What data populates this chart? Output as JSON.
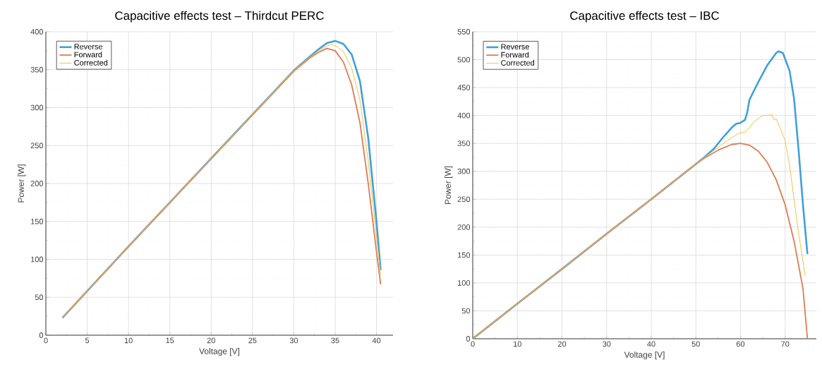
{
  "chart_data": [
    {
      "type": "line",
      "title": "Capacitive effects test – Thirdcut PERC",
      "xlabel": "Voltage [V]",
      "ylabel": "Power [W]",
      "xlim": [
        0,
        42
      ],
      "ylim": [
        0,
        400
      ],
      "xticks": [
        0,
        5,
        10,
        15,
        20,
        25,
        30,
        35,
        40
      ],
      "yticks": [
        0,
        50,
        100,
        150,
        200,
        250,
        300,
        350,
        400
      ],
      "grid": true,
      "legend": "top left",
      "marker": "none",
      "line_style": "solid",
      "series": [
        {
          "name": "Reverse",
          "color": "#3fa0dc",
          "x": [
            2,
            10,
            20,
            30,
            32,
            33,
            34,
            35,
            36,
            37,
            38,
            39,
            40,
            40.5
          ],
          "values": [
            23,
            117,
            233,
            349,
            368,
            377,
            385,
            388,
            384,
            370,
            335,
            260,
            150,
            86
          ]
        },
        {
          "name": "Forward",
          "color": "#e07b54",
          "x": [
            2,
            10,
            20,
            30,
            32,
            33,
            34,
            35,
            36,
            37,
            38,
            39,
            40,
            40.5
          ],
          "values": [
            23,
            117,
            233,
            348,
            366,
            373,
            378,
            375,
            360,
            330,
            280,
            200,
            110,
            67
          ]
        },
        {
          "name": "Corrected",
          "color": "#f4c245",
          "x": [
            2,
            10,
            20,
            30,
            32,
            33,
            34,
            34.5,
            35,
            36,
            37,
            38,
            39,
            40,
            40.5
          ],
          "values": [
            23,
            117,
            233,
            349,
            367,
            375,
            381,
            383,
            382,
            374,
            352,
            310,
            230,
            130,
            80
          ]
        }
      ]
    },
    {
      "type": "line",
      "title": "Capacitive effects test – IBC",
      "xlabel": "Voltage [V]",
      "ylabel": "Power [W]",
      "xlim": [
        0,
        77
      ],
      "ylim": [
        0,
        550
      ],
      "xticks": [
        0,
        10,
        20,
        30,
        40,
        50,
        60,
        70
      ],
      "yticks": [
        0,
        50,
        100,
        150,
        200,
        250,
        300,
        350,
        400,
        450,
        500,
        550
      ],
      "grid": true,
      "legend": "top left",
      "marker": "none",
      "line_style": "solid",
      "series": [
        {
          "name": "Reverse",
          "color": "#3fa0dc",
          "x": [
            0,
            10,
            20,
            30,
            40,
            50,
            52,
            54,
            56,
            58,
            59,
            60,
            61,
            61.5,
            62,
            64,
            66,
            68,
            68.5,
            69.5,
            71,
            72,
            73,
            74,
            75
          ],
          "values": [
            0,
            63,
            125,
            188,
            250,
            313,
            326,
            340,
            360,
            378,
            385,
            387,
            392,
            405,
            428,
            460,
            490,
            512,
            515,
            512,
            480,
            430,
            340,
            240,
            152
          ]
        },
        {
          "name": "Forward",
          "color": "#e07b54",
          "x": [
            0,
            10,
            20,
            30,
            40,
            50,
            52,
            55,
            58,
            60,
            62,
            64,
            66,
            68,
            70,
            72,
            74,
            75
          ],
          "values": [
            0,
            63,
            125,
            188,
            250,
            313,
            324,
            338,
            348,
            350,
            347,
            336,
            316,
            285,
            240,
            175,
            90,
            0
          ]
        },
        {
          "name": "Corrected",
          "color": "#f4c245",
          "x": [
            0,
            10,
            20,
            30,
            40,
            50,
            52,
            55,
            57,
            59,
            60,
            61,
            62,
            63,
            65,
            66,
            67,
            67.5,
            68,
            69,
            70,
            71,
            72,
            73,
            74.5
          ],
          "values": [
            0,
            63,
            125,
            188,
            250,
            313,
            325,
            343,
            355,
            365,
            369,
            370,
            378,
            389,
            400,
            400,
            402,
            392,
            394,
            375,
            355,
            310,
            250,
            190,
            113
          ]
        }
      ]
    }
  ]
}
